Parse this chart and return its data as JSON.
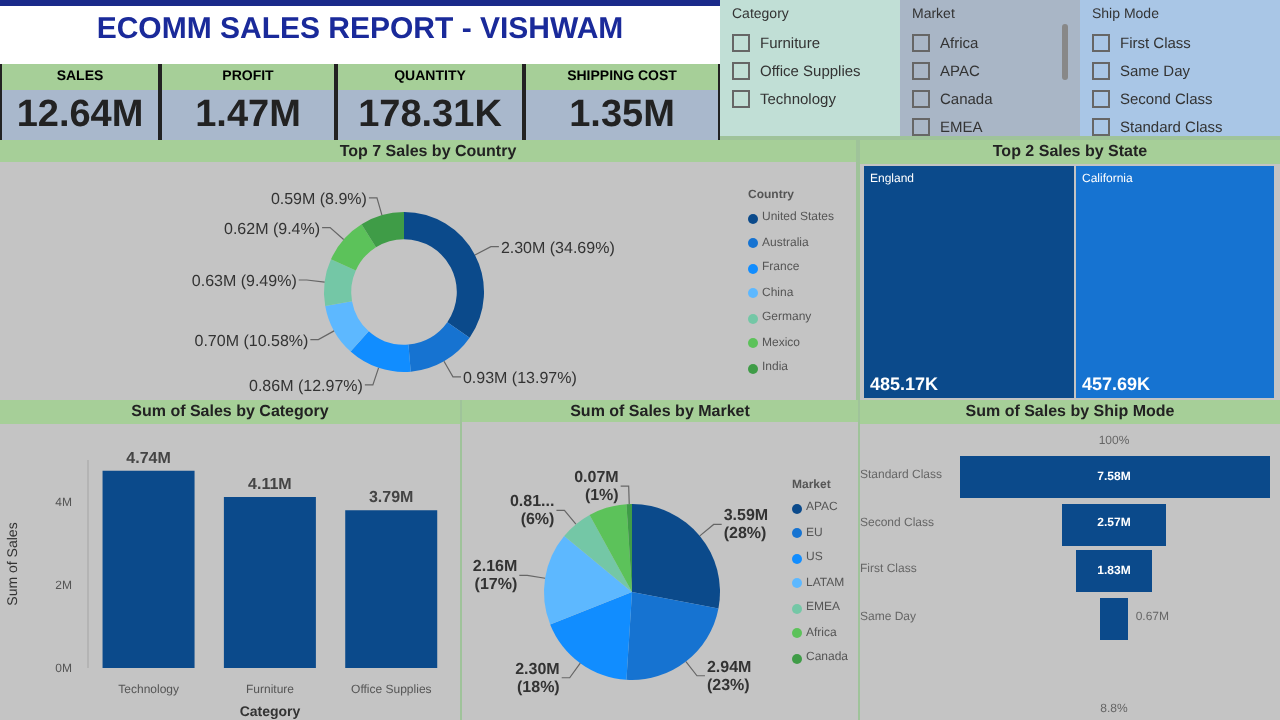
{
  "chart_data": [
    {
      "type": "other",
      "title": "ECOMM SALES REPORT - VISHWAM",
      "categories": [
        "SALES",
        "PROFIT",
        "QUANTITY",
        "SHIPPING COST"
      ],
      "annotations": [
        "12.64M",
        "1.47M",
        "178.31K",
        "1.35M"
      ]
    },
    {
      "type": "other",
      "title": "Category",
      "categories": [
        "Furniture",
        "Office Supplies",
        "Technology"
      ]
    },
    {
      "type": "other",
      "title": "Market",
      "categories": [
        "Africa",
        "APAC",
        "Canada",
        "EMEA"
      ]
    },
    {
      "type": "other",
      "title": "Ship Mode",
      "categories": [
        "First Class",
        "Same Day",
        "Second Class",
        "Standard Class"
      ]
    },
    {
      "type": "donut",
      "title": "Top 7 Sales by Country",
      "legend_title": "Country",
      "legend": "right",
      "categories": [
        "United States",
        "Australia",
        "France",
        "China",
        "Germany",
        "Mexico",
        "India"
      ],
      "values": [
        34.69,
        13.97,
        12.97,
        10.58,
        9.49,
        9.4,
        8.9
      ],
      "value_labels": [
        "2.30M (34.69%)",
        "0.93M (13.97%)",
        "0.86M (12.97%)",
        "0.70M (10.58%)",
        "0.63M (9.49%)",
        "0.62M (9.4%)",
        "0.59M (8.9%)"
      ],
      "colors": [
        "#0b4a8b",
        "#1673d1",
        "#118dff",
        "#5db8ff",
        "#74c7a6",
        "#5cc25a",
        "#3f9c47"
      ]
    },
    {
      "type": "other",
      "title": "Top 2 Sales by State",
      "categories": [
        "England",
        "California"
      ],
      "values": [
        485.17,
        457.69
      ],
      "value_labels": [
        "485.17K",
        "457.69K"
      ]
    },
    {
      "type": "bar",
      "title": "Sum of Sales by Category",
      "xlabel": "Category",
      "ylabel": "Sum of Sales",
      "categories": [
        "Technology",
        "Furniture",
        "Office Supplies"
      ],
      "values": [
        4.74,
        4.11,
        3.79
      ],
      "value_labels": [
        "4.74M",
        "4.11M",
        "3.79M"
      ],
      "color": "#0b4a8b",
      "ylim": [
        0,
        5
      ],
      "yticks": [
        {
          "value": 0,
          "label": "0M"
        },
        {
          "value": 2,
          "label": "2M"
        },
        {
          "value": 4,
          "label": "4M"
        }
      ]
    },
    {
      "type": "pie",
      "title": "Sum of Sales by Market",
      "legend_title": "Market",
      "legend": "right",
      "categories": [
        "APAC",
        "EU",
        "US",
        "LATAM",
        "EMEA",
        "Africa",
        "Canada"
      ],
      "values": [
        28,
        23,
        18,
        17,
        6,
        7,
        1
      ],
      "value_labels": [
        "3.59M (28%)",
        "2.94M (23%)",
        "2.30M (18%)",
        "2.16M (17%)",
        "0.81... (6%)",
        null,
        "0.07M (1%)"
      ],
      "colors": [
        "#0b4a8b",
        "#1673d1",
        "#118dff",
        "#5db8ff",
        "#74c7a6",
        "#5cc25a",
        "#3f9c47"
      ]
    },
    {
      "type": "other",
      "title": "Sum of Sales by Ship Mode",
      "categories": [
        "Standard Class",
        "Second Class",
        "First Class",
        "Same Day"
      ],
      "values": [
        7.58,
        2.57,
        1.83,
        0.67
      ],
      "value_labels": [
        "7.58M",
        "2.57M",
        "1.83M",
        "0.67M"
      ],
      "annotations": [
        "100%",
        "8.8%"
      ]
    }
  ]
}
